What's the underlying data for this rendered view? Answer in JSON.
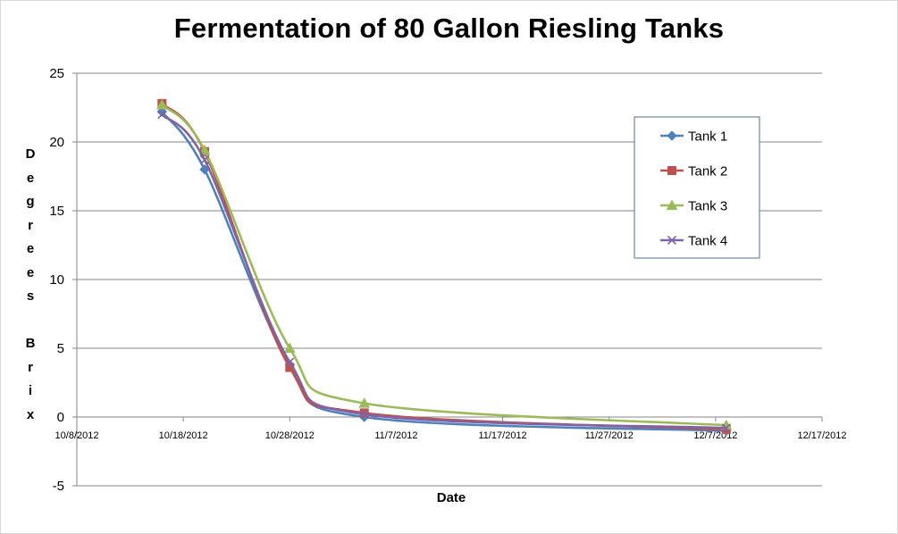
{
  "chart_data": {
    "type": "line",
    "title": "Fermentation of 80 Gallon Riesling Tanks",
    "xlabel": "Date",
    "ylabel": "Degrees Brix",
    "ylim": [
      -5,
      25
    ],
    "yticks": [
      -5,
      0,
      5,
      10,
      15,
      20,
      25
    ],
    "xlim": [
      "2012-10-08",
      "2012-12-17"
    ],
    "xtick_labels": [
      "10/8/2012",
      "10/18/2012",
      "10/28/2012",
      "11/7/2012",
      "11/17/2012",
      "11/27/2012",
      "12/7/2012",
      "12/17/2012"
    ],
    "grid": true,
    "legend": "right",
    "smooth": true,
    "x": [
      "2012-10-16",
      "2012-10-20",
      "2012-10-28",
      "2012-11-04",
      "2012-12-08"
    ],
    "series": [
      {
        "name": "Tank 1",
        "color": "#4F81BD",
        "marker": "diamond",
        "values": [
          22.2,
          18.0,
          3.8,
          0.0,
          -1.0
        ]
      },
      {
        "name": "Tank 2",
        "color": "#C0504D",
        "marker": "square",
        "values": [
          22.8,
          19.3,
          3.6,
          0.3,
          -0.9
        ]
      },
      {
        "name": "Tank 3",
        "color": "#9BBB59",
        "marker": "triangle",
        "values": [
          22.7,
          19.4,
          5.0,
          1.0,
          -0.6
        ]
      },
      {
        "name": "Tank 4",
        "color": "#8064A2",
        "marker": "x",
        "values": [
          22.0,
          18.7,
          4.0,
          0.2,
          -0.8
        ]
      }
    ]
  }
}
